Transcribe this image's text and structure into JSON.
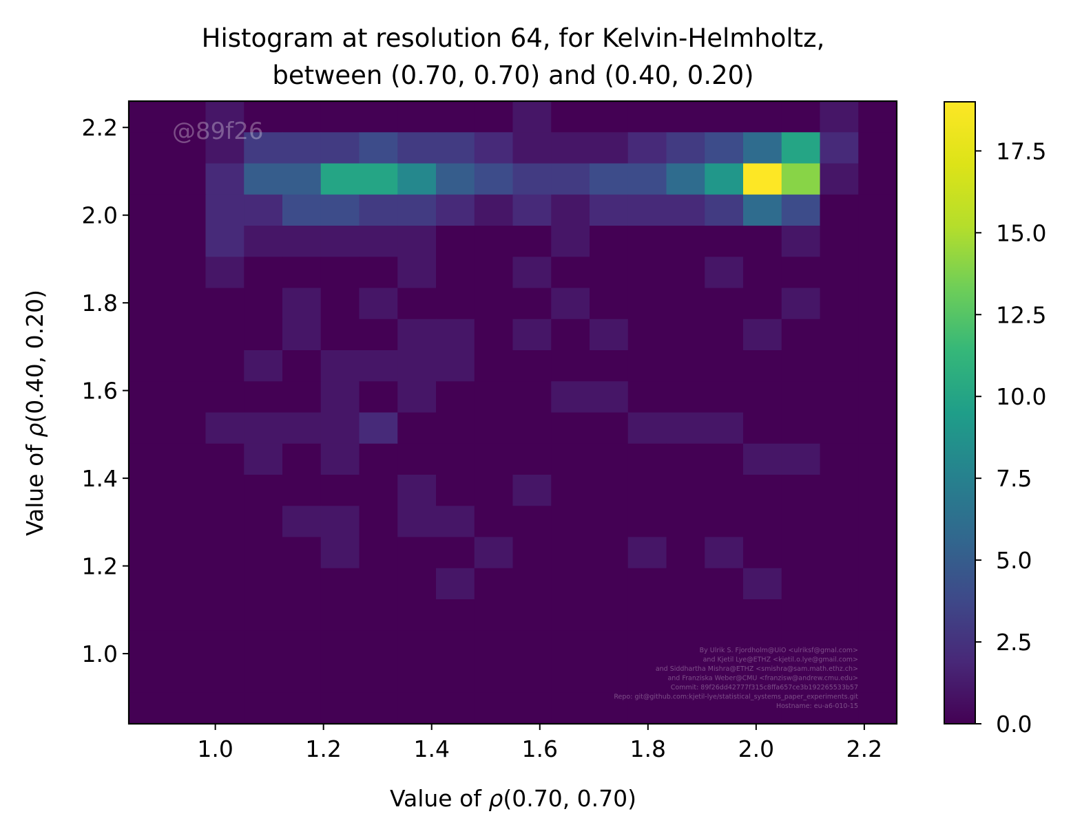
{
  "chart_data": {
    "type": "heatmap",
    "title_lines": [
      "Histogram at resolution 64, for Kelvin-Helmholtz,",
      "between (0.70, 0.70) and (0.40, 0.20)"
    ],
    "xlabel_prefix": "Value of ",
    "xlabel_var": "ρ",
    "xlabel_suffix": "(0.70, 0.70)",
    "ylabel_prefix": "Value of ",
    "ylabel_var": "ρ",
    "ylabel_suffix": "(0.40, 0.20)",
    "xlim": [
      0.84,
      2.26
    ],
    "ylim": [
      0.84,
      2.26
    ],
    "xticks": [
      "1.0",
      "1.2",
      "1.4",
      "1.6",
      "1.8",
      "2.0",
      "2.2"
    ],
    "yticks": [
      "1.0",
      "1.2",
      "1.4",
      "1.6",
      "1.8",
      "2.0",
      "2.2"
    ],
    "colorbar_ticks": [
      "0.0",
      "2.5",
      "5.0",
      "7.5",
      "10.0",
      "12.5",
      "15.0",
      "17.5"
    ],
    "colorbar_range": [
      0,
      19
    ],
    "colormap": "viridis",
    "bin_x_edges_start": 0.84,
    "bin_y_edges_start": 0.84,
    "bin_width": 0.071,
    "grid_note": "rows listed from top (y≈2.22) to bottom (y≈0.87), 20 columns from x≈0.87 to x≈2.22",
    "counts": [
      [
        0,
        0,
        1,
        0,
        0,
        0,
        0,
        0,
        0,
        0,
        1,
        0,
        0,
        0,
        0,
        0,
        0,
        0,
        1,
        0
      ],
      [
        0,
        0,
        1,
        3,
        3,
        3,
        4,
        3,
        3,
        2,
        1,
        1,
        1,
        2,
        3,
        4,
        6,
        10,
        2,
        0
      ],
      [
        0,
        0,
        2,
        5,
        5,
        10,
        10,
        8,
        5,
        4,
        3,
        3,
        4,
        4,
        6,
        9,
        19,
        14,
        1,
        0
      ],
      [
        0,
        0,
        2,
        2,
        4,
        4,
        3,
        3,
        2,
        1,
        2,
        1,
        2,
        2,
        2,
        3,
        6,
        4,
        0,
        0
      ],
      [
        0,
        0,
        2,
        1,
        1,
        1,
        1,
        1,
        0,
        0,
        0,
        1,
        0,
        0,
        0,
        0,
        0,
        1,
        0,
        0
      ],
      [
        0,
        0,
        1,
        0,
        0,
        0,
        0,
        1,
        0,
        0,
        1,
        0,
        0,
        0,
        0,
        1,
        0,
        0,
        0,
        0
      ],
      [
        0,
        0,
        0,
        0,
        1,
        0,
        1,
        0,
        0,
        0,
        0,
        1,
        0,
        0,
        0,
        0,
        0,
        1,
        0,
        0
      ],
      [
        0,
        0,
        0,
        0,
        1,
        0,
        0,
        1,
        1,
        0,
        1,
        0,
        1,
        0,
        0,
        0,
        1,
        0,
        0,
        0
      ],
      [
        0,
        0,
        0,
        1,
        0,
        1,
        1,
        1,
        1,
        0,
        0,
        0,
        0,
        0,
        0,
        0,
        0,
        0,
        0,
        0
      ],
      [
        0,
        0,
        0,
        0,
        0,
        1,
        0,
        1,
        0,
        0,
        0,
        1,
        1,
        0,
        0,
        0,
        0,
        0,
        0,
        0
      ],
      [
        0,
        0,
        1,
        1,
        1,
        1,
        2,
        0,
        0,
        0,
        0,
        0,
        0,
        1,
        1,
        1,
        0,
        0,
        0,
        0
      ],
      [
        0,
        0,
        0,
        1,
        0,
        1,
        0,
        0,
        0,
        0,
        0,
        0,
        0,
        0,
        0,
        0,
        1,
        1,
        0,
        0
      ],
      [
        0,
        0,
        0,
        0,
        0,
        0,
        0,
        1,
        0,
        0,
        1,
        0,
        0,
        0,
        0,
        0,
        0,
        0,
        0,
        0
      ],
      [
        0,
        0,
        0,
        0,
        1,
        1,
        0,
        1,
        1,
        0,
        0,
        0,
        0,
        0,
        0,
        0,
        0,
        0,
        0,
        0
      ],
      [
        0,
        0,
        0,
        0,
        0,
        1,
        0,
        0,
        0,
        1,
        0,
        0,
        0,
        1,
        0,
        1,
        0,
        0,
        0,
        0
      ],
      [
        0,
        0,
        0,
        0,
        0,
        0,
        0,
        0,
        1,
        0,
        0,
        0,
        0,
        0,
        0,
        0,
        1,
        0,
        0,
        0
      ],
      [
        0,
        0,
        0,
        0,
        0,
        0,
        0,
        0,
        0,
        0,
        0,
        0,
        0,
        0,
        0,
        0,
        0,
        0,
        0,
        0
      ],
      [
        0,
        0,
        0,
        0,
        0,
        0,
        0,
        0,
        0,
        0,
        0,
        0,
        0,
        0,
        0,
        0,
        0,
        0,
        0,
        0
      ],
      [
        0,
        0,
        0,
        0,
        0,
        0,
        0,
        0,
        0,
        0,
        0,
        0,
        0,
        0,
        0,
        0,
        0,
        0,
        0,
        0
      ],
      [
        0,
        0,
        0,
        0,
        0,
        0,
        0,
        0,
        0,
        0,
        0,
        0,
        0,
        0,
        0,
        0,
        0,
        0,
        0,
        0
      ]
    ]
  },
  "watermark": "@89f26",
  "credits": [
    "By Ulrik S. Fjordholm@UiO <ulriksf@gmal.com>",
    "and Kjetil Lye@ETHZ <kjetil.o.lye@gmail.com>",
    "and Siddhartha Mishra@ETHZ <smishra@sam.math.ethz.ch>",
    "and Franziska Weber@CMU <franzisw@andrew.cmu.edu>",
    "Commit: 89f26dd42777f315c8ffa657ce3b192265533b57",
    "Repo: git@github.com:kjetil-lye/statistical_systems_paper_experiments.git",
    "Hostname: eu-a6-010-15"
  ]
}
